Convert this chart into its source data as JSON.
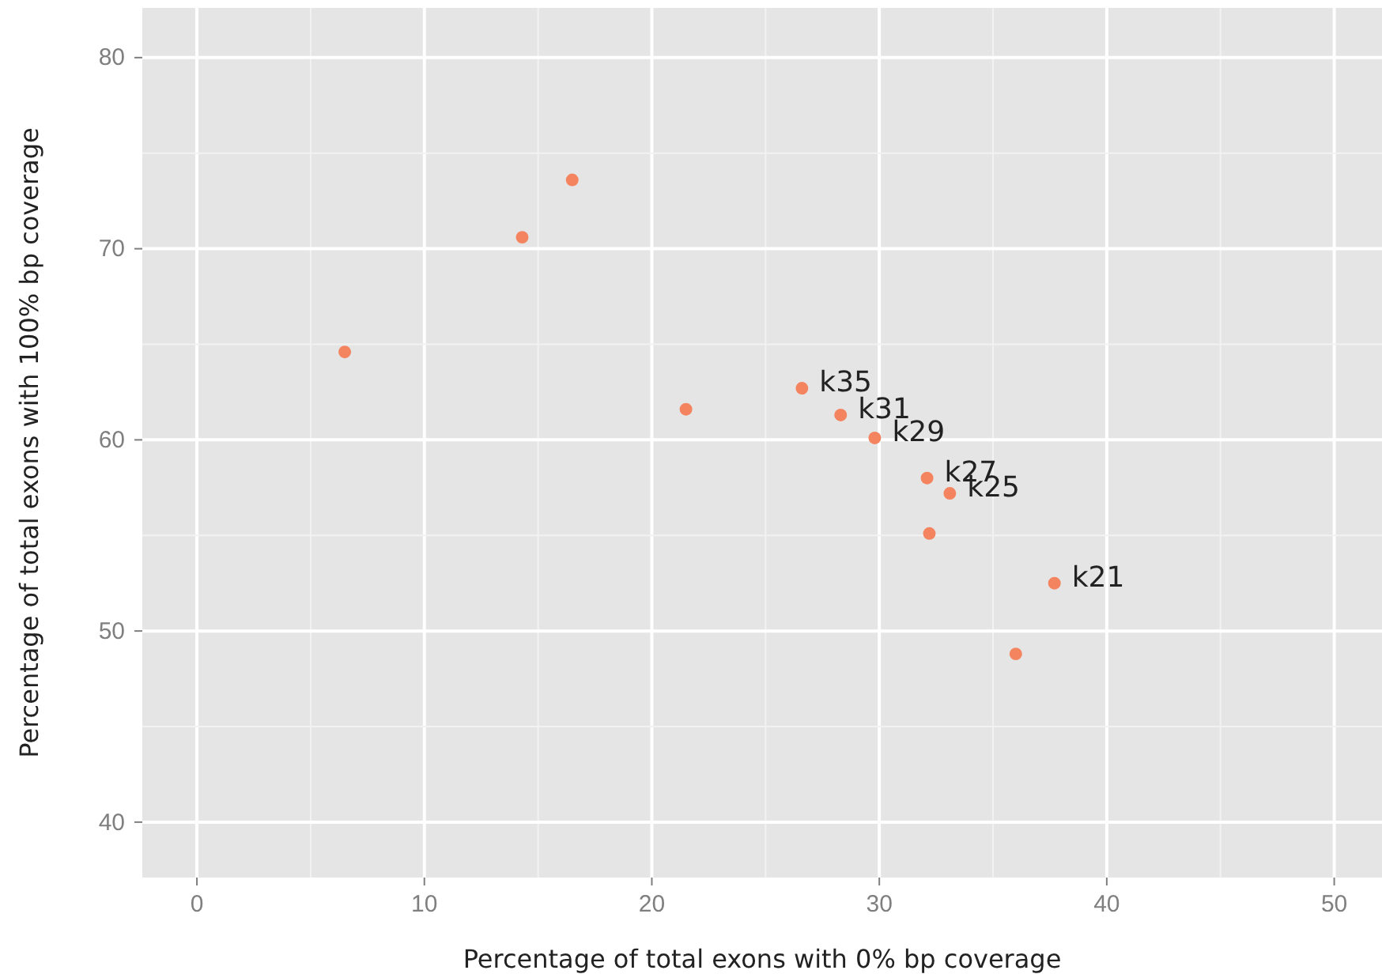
{
  "chart_data": {
    "type": "scatter",
    "xlabel": "Percentage of total exons with 0% bp coverage",
    "ylabel": "Percentage of total exons with 100% bp coverage",
    "x": [
      16.5,
      14.3,
      6.5,
      21.5,
      26.6,
      28.3,
      29.8,
      32.1,
      33.1,
      32.2,
      37.7,
      36.0
    ],
    "values": [
      73.6,
      70.6,
      64.6,
      61.6,
      62.7,
      61.3,
      60.1,
      58.0,
      57.2,
      55.1,
      52.5,
      48.8
    ],
    "color": "#f4845f",
    "marker": "circle",
    "xlim": [
      -2.4,
      52.1
    ],
    "ylim": [
      37.1,
      82.6
    ],
    "xticks": [
      0,
      10,
      20,
      30,
      40,
      50
    ],
    "yticks": [
      40,
      50,
      60,
      70,
      80
    ],
    "grid": true,
    "annotations": [
      {
        "text": "k35",
        "x": 26.6,
        "y": 62.7
      },
      {
        "text": "k31",
        "x": 28.3,
        "y": 61.3
      },
      {
        "text": "k29",
        "x": 29.8,
        "y": 60.1
      },
      {
        "text": "k27",
        "x": 32.1,
        "y": 58.0
      },
      {
        "text": "k25",
        "x": 33.1,
        "y": 57.2
      },
      {
        "text": "k21",
        "x": 37.7,
        "y": 52.5
      }
    ]
  }
}
